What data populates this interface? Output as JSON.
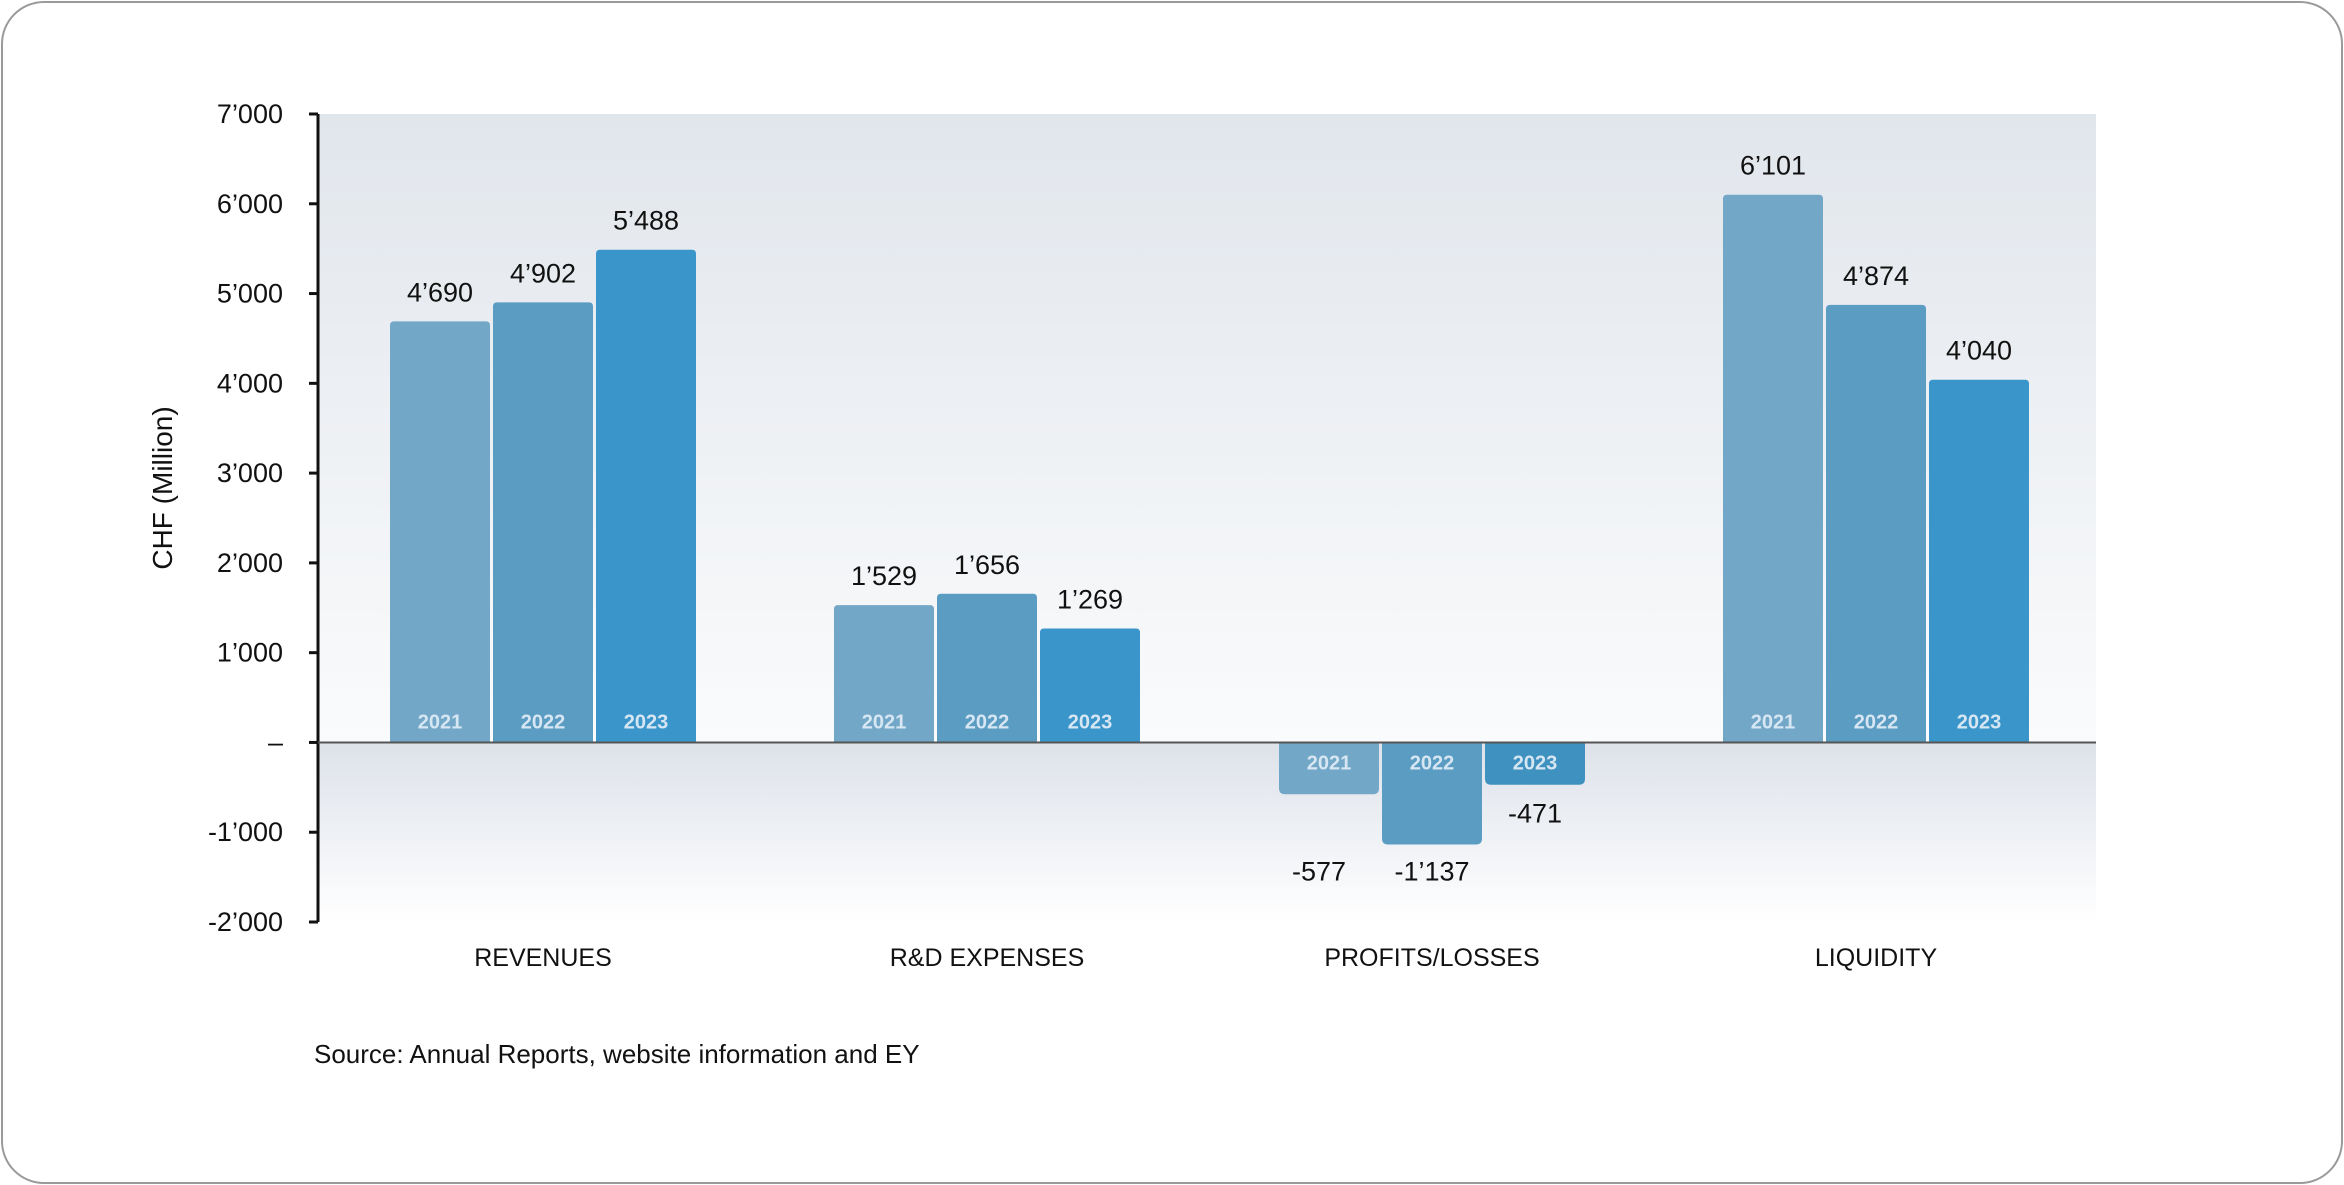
{
  "chart_data": {
    "type": "bar",
    "ylabel": "CHF (Million)",
    "xlabel": "",
    "ylim": [
      -2000,
      7000
    ],
    "yticks": [
      7000,
      6000,
      5000,
      4000,
      3000,
      2000,
      1000,
      0,
      -1000,
      -2000
    ],
    "ytick_labels": [
      "7’000",
      "6’000",
      "5’000",
      "4’000",
      "3’000",
      "2’000",
      "1’000",
      "–",
      "-1’000",
      "-2’000"
    ],
    "categories": [
      "REVENUES",
      "R&D EXPENSES",
      "PROFITS/LOSSES",
      "LIQUIDITY"
    ],
    "series": [
      {
        "name": "2021",
        "color": "#72a7c8",
        "values": [
          4690,
          1529,
          -577,
          6101
        ],
        "labels": [
          "4’690",
          "1’529",
          "-577",
          "6’101"
        ]
      },
      {
        "name": "2022",
        "color": "#5b9cc3",
        "values": [
          4902,
          1656,
          -1137,
          4874
        ],
        "labels": [
          "4’902",
          "1’656",
          "-1’137",
          "4’874"
        ]
      },
      {
        "name": "2023",
        "color": "#3a95cb",
        "values": [
          5488,
          1269,
          -471,
          4040
        ],
        "labels": [
          "5’488",
          "1’269",
          "-471",
          "4’040"
        ]
      }
    ],
    "grid": false,
    "legend": "none"
  },
  "source": "Source: Annual Reports, website information and EY"
}
